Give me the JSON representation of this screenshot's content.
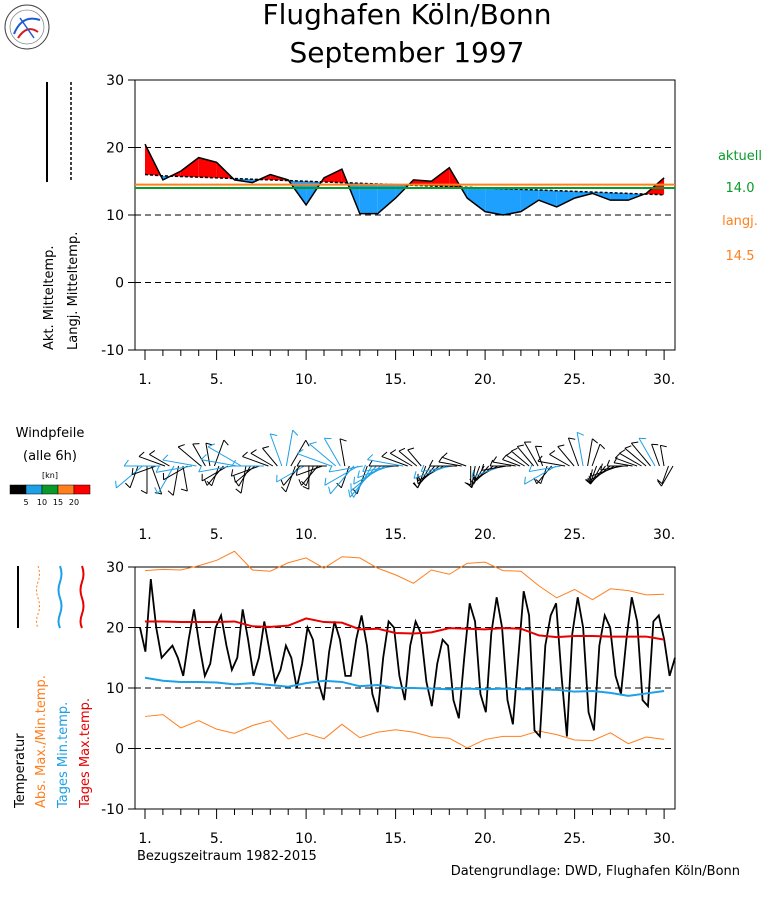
{
  "header": {
    "title_line1": "Flughafen Köln/Bonn",
    "title_line2": "September 1997",
    "logo_icon": "dwd-emblem-icon"
  },
  "footer": {
    "reference_period": "Bezugszeitraum 1982-2015",
    "source": "Datengrundlage: DWD, Flughafen Köln/Bonn"
  },
  "colors": {
    "positive_anomaly": "#ff0000",
    "negative_anomaly": "#1ea0ff",
    "current_mean_line": "#0a9a2a",
    "longterm_mean_line": "#ff7f1e",
    "tmax": "#e60000",
    "tmin": "#1ea0e6",
    "absolute": "#ff7f1e",
    "temperature": "#000000"
  },
  "chart_data": [
    {
      "type": "area",
      "legend": {
        "actual_mean_label": "Akt. Mitteltemp.",
        "longterm_mean_label": "Langj. Mitteltemp."
      },
      "side_labels": {
        "current_label": "aktuell",
        "current_value": "14.0",
        "longterm_label": "langj.",
        "longterm_value": "14.5"
      },
      "ylim": [
        -10,
        30
      ],
      "y_ticks": [
        "30",
        "20",
        "10",
        "0",
        "-10"
      ],
      "x_tick_labels": [
        "1.",
        "5.",
        "10.",
        "15.",
        "20.",
        "25.",
        "30."
      ],
      "x_tick_days": [
        1,
        5,
        10,
        15,
        20,
        25,
        30
      ],
      "grid": true,
      "current_mean": 14.0,
      "longterm_mean": 14.5,
      "days": [
        1,
        2,
        3,
        4,
        5,
        6,
        7,
        8,
        9,
        10,
        11,
        12,
        13,
        14,
        15,
        16,
        17,
        18,
        19,
        20,
        21,
        22,
        23,
        24,
        25,
        26,
        27,
        28,
        29,
        30
      ],
      "actual_mean": [
        20.5,
        15.2,
        16.5,
        18.5,
        17.8,
        15.2,
        14.8,
        16.0,
        15.2,
        11.5,
        15.5,
        16.8,
        10.2,
        10.2,
        12.5,
        15.2,
        15.0,
        17.0,
        12.5,
        10.5,
        10.0,
        10.5,
        12.2,
        11.2,
        12.5,
        13.2,
        12.2,
        12.2,
        13.2,
        15.5
      ],
      "longterm_mean_daily": [
        16.0,
        15.8,
        15.7,
        15.6,
        15.5,
        15.4,
        15.3,
        15.2,
        15.1,
        15.0,
        14.9,
        14.8,
        14.7,
        14.6,
        14.5,
        14.4,
        14.3,
        14.2,
        14.1,
        14.0,
        13.9,
        13.8,
        13.7,
        13.6,
        13.5,
        13.4,
        13.3,
        13.2,
        13.1,
        13.0
      ]
    },
    {
      "type": "line",
      "title": "Windpfeile",
      "subtitle": "(alle 6h)",
      "legend_unit": "[kn]",
      "legend_ticks": [
        "5",
        "10",
        "15",
        "20"
      ],
      "legend_colors": [
        "#000000",
        "#1ea0e6",
        "#0a9a2a",
        "#ff7f1e",
        "#ff0000"
      ],
      "x_tick_labels": [
        "1.",
        "5.",
        "10.",
        "15.",
        "20.",
        "25.",
        "30."
      ],
      "x_tick_days": [
        1,
        5,
        10,
        15,
        20,
        25,
        30
      ],
      "directions_deg": [
        200,
        230,
        180,
        160,
        250,
        270,
        290,
        300,
        210,
        190,
        170,
        240,
        260,
        280,
        310,
        330,
        350,
        20,
        200,
        220,
        240,
        260,
        280,
        300,
        190,
        210,
        230,
        250,
        270,
        290,
        300,
        320,
        340,
        10,
        30,
        200,
        220,
        240,
        180,
        200,
        220,
        250,
        270,
        290,
        310,
        330,
        350,
        200,
        220,
        240,
        260,
        200,
        210,
        220,
        230,
        240,
        250,
        260,
        270,
        280,
        290,
        300,
        310,
        320,
        200,
        210,
        220,
        230,
        240,
        250,
        260,
        270,
        280,
        290,
        180,
        190,
        200,
        210,
        220,
        230,
        240,
        250,
        260,
        270,
        280,
        290,
        300,
        310,
        320,
        330,
        340,
        200,
        220,
        240,
        260,
        280,
        300,
        320,
        340,
        350,
        10,
        20,
        200,
        210,
        220,
        230,
        240,
        250,
        260,
        270,
        280,
        290,
        300,
        310,
        320,
        330,
        340,
        350,
        200,
        210
      ],
      "speeds_kn": [
        6,
        11,
        8,
        9,
        7,
        12,
        8,
        6,
        10,
        9,
        7,
        8,
        12,
        11,
        9,
        7,
        6,
        8,
        5,
        7,
        9,
        11,
        12,
        13,
        8,
        6,
        7,
        9,
        10,
        8,
        7,
        6,
        11,
        12,
        9,
        8,
        7,
        10,
        6,
        5,
        7,
        8,
        9,
        12,
        11,
        10,
        8,
        6,
        12,
        13,
        11,
        9,
        12,
        14,
        13,
        12,
        11,
        10,
        9,
        12,
        8,
        7,
        6,
        5,
        6,
        7,
        5,
        8,
        9,
        12,
        10,
        8,
        6,
        7,
        4,
        5,
        6,
        5,
        4,
        6,
        8,
        10,
        7,
        5,
        6,
        4,
        5,
        6,
        7,
        8,
        5,
        4,
        6,
        12,
        10,
        8,
        6,
        7,
        9,
        11,
        8,
        6,
        4,
        5,
        6,
        7,
        8,
        9,
        6,
        5,
        4,
        6,
        7,
        8,
        9,
        10,
        6,
        5,
        4,
        6
      ]
    },
    {
      "type": "line",
      "legend": {
        "temperature": "Temperatur",
        "abs_maxmin": "Abs. Max./Min.temp.",
        "daily_min": "Tages Min.temp.",
        "daily_max": "Tages Max.temp."
      },
      "ylim": [
        -10,
        30
      ],
      "y_ticks": [
        "30",
        "20",
        "10",
        "0",
        "-10"
      ],
      "x_tick_labels": [
        "1.",
        "5.",
        "10.",
        "15.",
        "20.",
        "25.",
        "30."
      ],
      "x_tick_days": [
        1,
        5,
        10,
        15,
        20,
        25,
        30
      ],
      "grid": true,
      "days": [
        1,
        2,
        3,
        4,
        5,
        6,
        7,
        8,
        9,
        10,
        11,
        12,
        13,
        14,
        15,
        16,
        17,
        18,
        19,
        20,
        21,
        22,
        23,
        24,
        25,
        26,
        27,
        28,
        29,
        30
      ],
      "tmax_longterm": [
        21.0,
        21.0,
        20.9,
        20.9,
        20.9,
        21.0,
        20.2,
        20.1,
        20.3,
        21.5,
        20.9,
        20.8,
        19.7,
        19.8,
        19.1,
        19.0,
        19.2,
        19.9,
        19.8,
        19.7,
        19.9,
        19.8,
        18.7,
        18.4,
        18.6,
        18.6,
        18.5,
        18.5,
        18.5,
        18.0
      ],
      "tmin_longterm": [
        11.7,
        11.2,
        11.0,
        11.0,
        10.9,
        10.6,
        10.8,
        10.5,
        10.2,
        10.8,
        11.2,
        11.0,
        10.3,
        10.5,
        10.0,
        10.0,
        9.9,
        9.8,
        9.9,
        9.8,
        9.9,
        9.8,
        9.8,
        9.7,
        9.4,
        9.5,
        9.2,
        8.7,
        9.1,
        9.5
      ],
      "abs_max": [
        29.4,
        29.6,
        29.5,
        30.2,
        31.1,
        32.6,
        29.5,
        29.3,
        30.7,
        31.5,
        29.8,
        31.7,
        31.5,
        29.8,
        28.7,
        27.3,
        29.5,
        28.8,
        30.6,
        30.8,
        29.4,
        29.3,
        26.9,
        24.9,
        26.3,
        24.6,
        26.4,
        26.1,
        25.4,
        25.5
      ],
      "abs_min": [
        5.3,
        5.6,
        3.4,
        4.6,
        3.2,
        2.5,
        3.8,
        4.6,
        1.6,
        2.5,
        1.6,
        4.0,
        1.8,
        2.7,
        3.1,
        2.7,
        1.9,
        1.7,
        0.1,
        1.5,
        2.0,
        2.0,
        2.9,
        2.3,
        1.4,
        1.3,
        2.6,
        0.8,
        1.9,
        1.5
      ],
      "hourly_temperature": [
        20,
        16,
        28,
        20,
        15,
        16,
        17,
        15,
        12,
        18,
        23,
        17,
        12,
        14,
        20,
        22,
        17,
        13,
        15,
        23,
        18,
        12,
        15,
        21,
        16,
        11,
        13,
        17,
        15,
        10,
        14,
        20,
        18,
        11,
        8,
        16,
        21,
        18,
        12,
        12,
        18,
        22,
        17,
        9,
        6,
        15,
        21,
        20,
        12,
        8,
        17,
        21,
        19,
        11,
        7,
        14,
        18,
        17,
        8,
        5,
        15,
        24,
        21,
        9,
        6,
        19,
        25,
        20,
        8,
        4,
        15,
        26,
        22,
        3,
        2,
        17,
        22,
        24,
        12,
        2,
        19,
        25,
        20,
        6,
        3,
        17,
        22,
        20,
        12,
        9,
        18,
        25,
        21,
        8,
        7,
        21,
        22,
        18,
        12,
        15
      ]
    }
  ]
}
